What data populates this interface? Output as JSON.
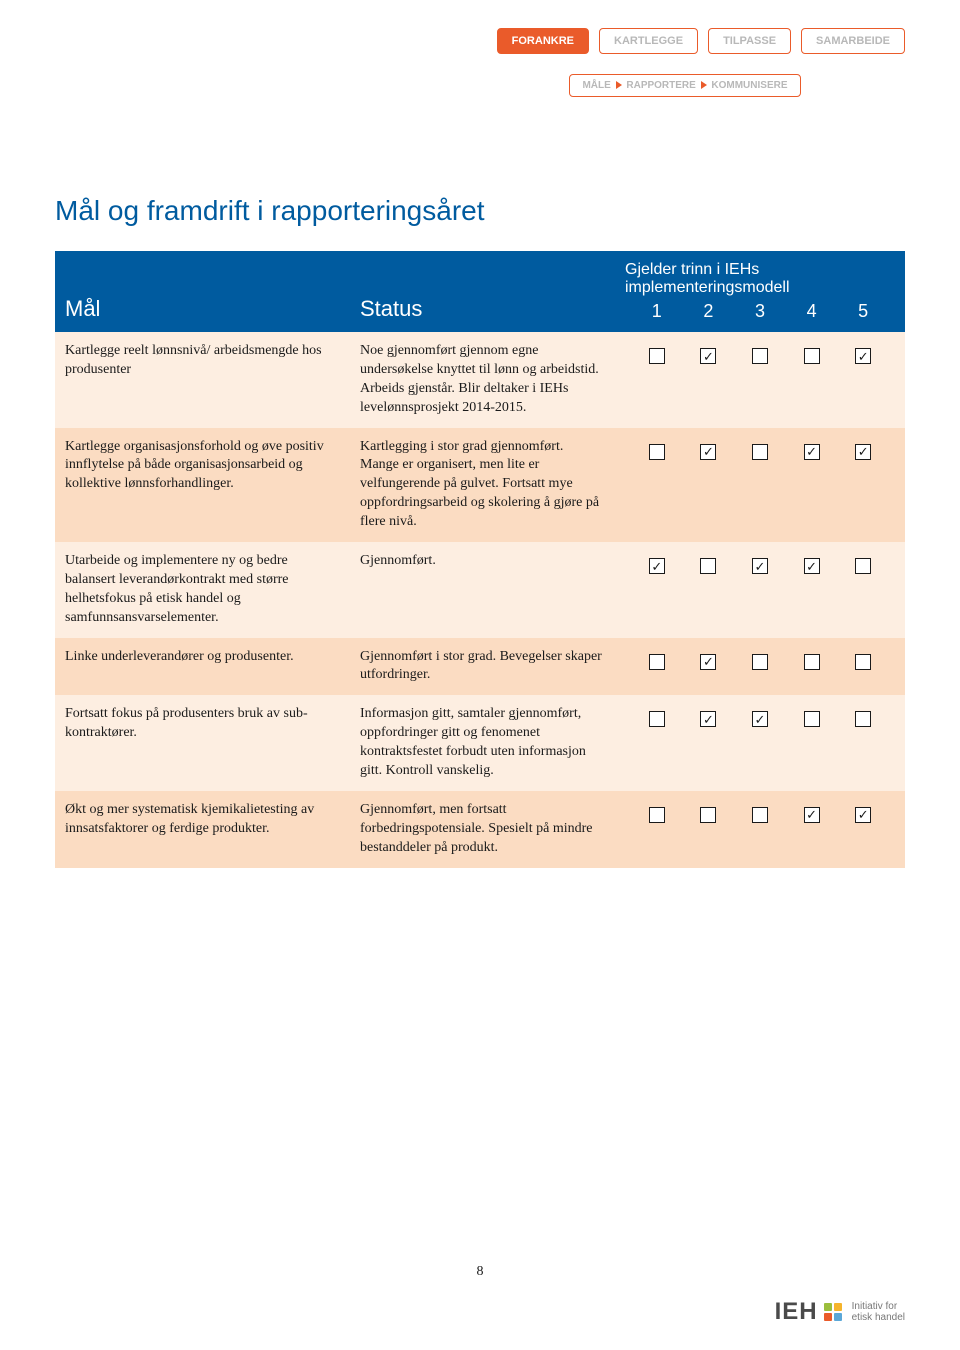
{
  "nav": {
    "top": [
      {
        "label": "FORANKRE",
        "active": true
      },
      {
        "label": "KARTLEGGE",
        "active": false
      },
      {
        "label": "TILPASSE",
        "active": false
      },
      {
        "label": "SAMARBEIDE",
        "active": false
      }
    ],
    "sub": {
      "a": "MÅLE",
      "b": "RAPPORTERE",
      "c": "KOMMUNISERE"
    }
  },
  "heading": "Mål og framdrift i rapporteringsåret",
  "columns": {
    "goal": "Mål",
    "status": "Status",
    "trinn_head": "Gjelder trinn i IEHs implementeringsmodell",
    "nums": [
      "1",
      "2",
      "3",
      "4",
      "5"
    ]
  },
  "rows": [
    {
      "goal": "Kartlegge reelt lønnsnivå/ arbeidsmengde hos produsenter",
      "status": "Noe gjennomført gjennom egne undersøkelse knyttet til lønn og arbeidstid. Arbeids gjenstår. Blir deltaker i IEHs levelønnsprosjekt 2014-2015.",
      "checks": [
        false,
        true,
        false,
        false,
        true
      ]
    },
    {
      "goal": "Kartlegge organisasjonsforhold og øve positiv innflytelse på både organisasjonsarbeid og kollektive lønnsforhandlinger.",
      "status": "Kartlegging i stor grad gjennomført. Mange er organisert, men lite er velfungerende på gulvet. Fortsatt mye oppfordringsarbeid og skolering å gjøre på flere nivå.",
      "checks": [
        false,
        true,
        false,
        true,
        true
      ]
    },
    {
      "goal": "Utarbeide og implementere ny og bedre balansert leverandørkontrakt med\nstørre helhetsfokus på etisk handel og samfunnsansvarselementer.",
      "status": "Gjennomført.",
      "checks": [
        true,
        false,
        true,
        true,
        false
      ]
    },
    {
      "goal": "Linke underleverandører og produsenter.",
      "status": "Gjennomført i stor grad. Bevegelser skaper utfordringer.",
      "checks": [
        false,
        true,
        false,
        false,
        false
      ]
    },
    {
      "goal": "Fortsatt fokus på produsenters bruk av sub-kontraktører.",
      "status": "Informasjon gitt, samtaler gjennomført, oppfordringer gitt og fenomenet kontraktsfestet forbudt uten informasjon gitt. Kontroll vanskelig.",
      "checks": [
        false,
        true,
        true,
        false,
        false
      ]
    },
    {
      "goal": "Økt og mer systematisk kjemikalietesting av innsatsfaktorer og ferdige\nprodukter.",
      "status": "Gjennomført, men fortsatt forbedringspotensiale. Spesielt på mindre bestanddeler på produkt.",
      "checks": [
        false,
        false,
        false,
        true,
        true
      ]
    }
  ],
  "page_number": "8",
  "footer": {
    "brand": "IEH",
    "sub1": "Initiativ for",
    "sub2": "etisk handel"
  }
}
